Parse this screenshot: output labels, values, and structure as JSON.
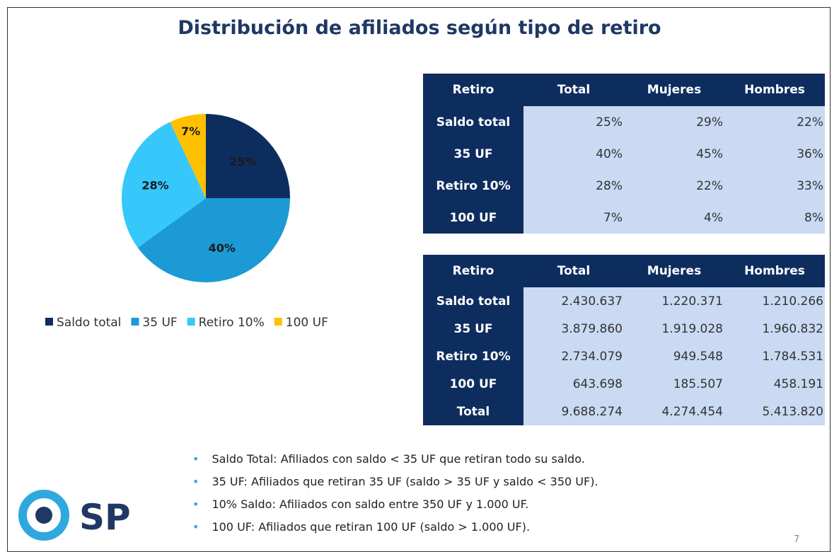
{
  "title": "Distribución de afiliados según tipo de retiro",
  "chart_data": {
    "type": "pie",
    "categories": [
      "Saldo total",
      "35 UF",
      "Retiro 10%",
      "100 UF"
    ],
    "values": [
      25,
      40,
      28,
      7
    ],
    "value_labels": [
      "25%",
      "40%",
      "28%",
      "7%"
    ],
    "colors": [
      "#0e2d5f",
      "#1c9ad6",
      "#36c8fb",
      "#ffc000"
    ],
    "legend": "bottom"
  },
  "table1": {
    "header": [
      "Retiro",
      "Total",
      "Mujeres",
      "Hombres"
    ],
    "rows": [
      [
        "Saldo total",
        "25%",
        "29%",
        "22%"
      ],
      [
        "35 UF",
        "40%",
        "45%",
        "36%"
      ],
      [
        "Retiro 10%",
        "28%",
        "22%",
        "33%"
      ],
      [
        "100 UF",
        "7%",
        "4%",
        "8%"
      ]
    ]
  },
  "table2": {
    "header": [
      "Retiro",
      "Total",
      "Mujeres",
      "Hombres"
    ],
    "rows": [
      [
        "Saldo total",
        "2.430.637",
        "1.220.371",
        "1.210.266"
      ],
      [
        "35 UF",
        "3.879.860",
        "1.919.028",
        "1.960.832"
      ],
      [
        "Retiro 10%",
        "2.734.079",
        "949.548",
        "1.784.531"
      ],
      [
        "100 UF",
        "643.698",
        "185.507",
        "458.191"
      ],
      [
        "Total",
        "9.688.274",
        "4.274.454",
        "5.413.820"
      ]
    ]
  },
  "notes": [
    "Saldo Total: Afiliados con saldo < 35 UF que retiran todo su saldo.",
    "35 UF: Afiliados que retiran 35 UF (saldo > 35 UF y saldo < 350 UF).",
    "10% Saldo: Afiliados con saldo entre 350 UF y 1.000 UF.",
    "100 UF: Afiliados que retiran 100 UF (saldo > 1.000 UF)."
  ],
  "logo": "SP",
  "page_number": "7"
}
